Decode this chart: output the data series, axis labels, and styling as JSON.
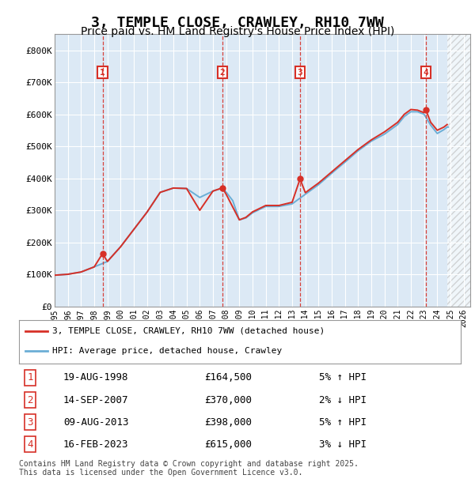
{
  "title": "3, TEMPLE CLOSE, CRAWLEY, RH10 7WW",
  "subtitle": "Price paid vs. HM Land Registry's House Price Index (HPI)",
  "title_fontsize": 13,
  "subtitle_fontsize": 10,
  "hpi_color": "#6baed6",
  "price_color": "#d73027",
  "plot_bg_color": "#dce9f5",
  "grid_color": "#ffffff",
  "ylim": [
    0,
    850000
  ],
  "yticks": [
    0,
    100000,
    200000,
    300000,
    400000,
    500000,
    600000,
    700000,
    800000
  ],
  "ytick_labels": [
    "£0",
    "£100K",
    "£200K",
    "£300K",
    "£400K",
    "£500K",
    "£600K",
    "£700K",
    "£800K"
  ],
  "xmin": 1995.0,
  "xmax": 2026.5,
  "purchases": [
    {
      "year": 1998.63,
      "price": 164500,
      "label": "1"
    },
    {
      "year": 2007.71,
      "price": 370000,
      "label": "2"
    },
    {
      "year": 2013.6,
      "price": 398000,
      "label": "3"
    },
    {
      "year": 2023.12,
      "price": 615000,
      "label": "4"
    }
  ],
  "legend_entries": [
    {
      "label": "3, TEMPLE CLOSE, CRAWLEY, RH10 7WW (detached house)",
      "color": "#d73027"
    },
    {
      "label": "HPI: Average price, detached house, Crawley",
      "color": "#6baed6"
    }
  ],
  "table_rows": [
    {
      "num": "1",
      "date": "19-AUG-1998",
      "price": "£164,500",
      "pct": "5% ↑ HPI"
    },
    {
      "num": "2",
      "date": "14-SEP-2007",
      "price": "£370,000",
      "pct": "2% ↓ HPI"
    },
    {
      "num": "3",
      "date": "09-AUG-2013",
      "price": "£398,000",
      "pct": "5% ↑ HPI"
    },
    {
      "num": "4",
      "date": "16-FEB-2023",
      "price": "£615,000",
      "pct": "3% ↓ HPI"
    }
  ],
  "footnote": "Contains HM Land Registry data © Crown copyright and database right 2025.\nThis data is licensed under the Open Government Licence v3.0.",
  "hatch_x_start": 2024.75,
  "hatch_x_end": 2026.5
}
